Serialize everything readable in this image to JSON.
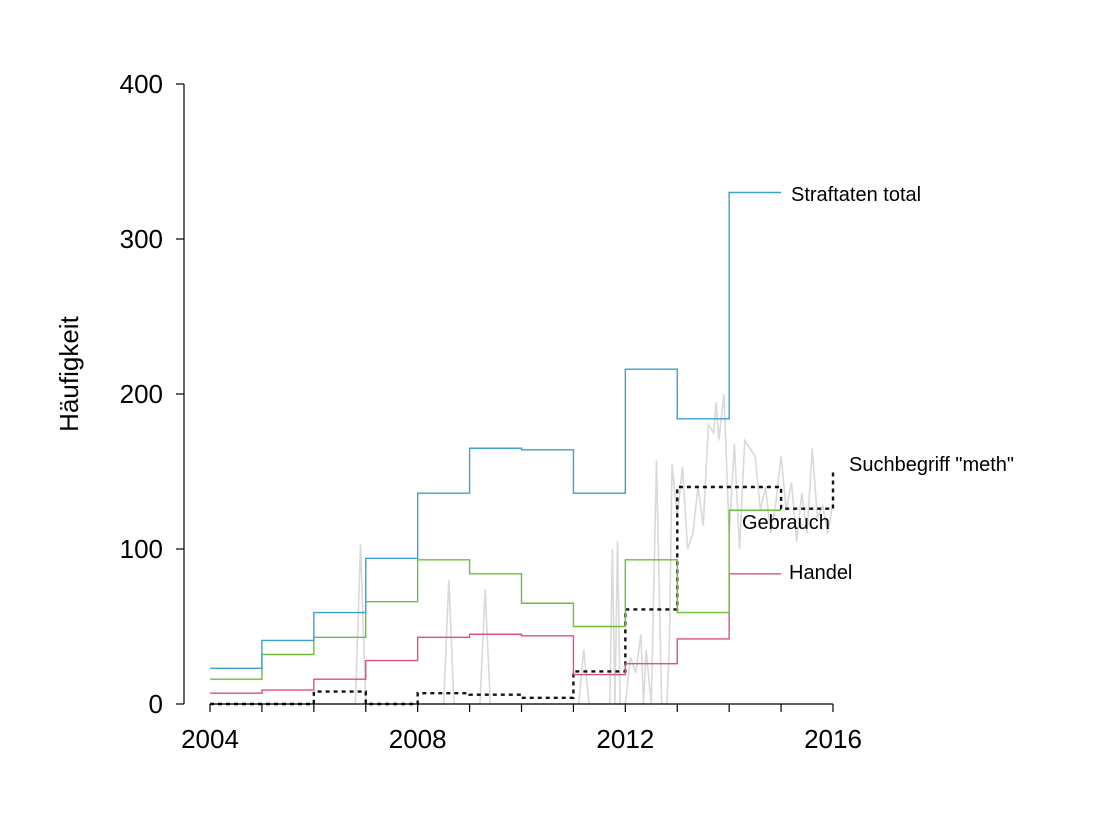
{
  "chart_data": {
    "type": "line",
    "title": "",
    "xlabel": "",
    "ylabel": "Häufigkeit",
    "xlim": [
      2004,
      2016
    ],
    "ylim": [
      0,
      400
    ],
    "x_ticks": [
      "2004",
      "2008",
      "2012",
      "2016"
    ],
    "y_ticks": [
      "0",
      "100",
      "200",
      "300",
      "400"
    ],
    "grid": false,
    "legend": "direct labels at right end of lines",
    "colors": {
      "straftaten": "#3aa1cf",
      "gebrauch": "#6cbf3a",
      "handel": "#db4f8a",
      "meth": "#111111",
      "trend": "#d9d9d9"
    },
    "series": [
      {
        "name": "Straftaten total",
        "key": "straftaten",
        "style": "step",
        "x": [
          2004,
          2005,
          2006,
          2007,
          2008,
          2009,
          2010,
          2011,
          2012,
          2013,
          2014,
          2015
        ],
        "values": [
          23,
          41,
          59,
          94,
          136,
          165,
          164,
          136,
          216,
          184,
          330,
          330
        ]
      },
      {
        "name": "Gebrauch",
        "key": "gebrauch",
        "style": "step",
        "x": [
          2004,
          2005,
          2006,
          2007,
          2008,
          2009,
          2010,
          2011,
          2012,
          2013,
          2014,
          2015
        ],
        "values": [
          16,
          32,
          43,
          66,
          93,
          84,
          65,
          50,
          93,
          59,
          125,
          125
        ]
      },
      {
        "name": "Handel",
        "key": "handel",
        "style": "step",
        "x": [
          2004,
          2005,
          2006,
          2007,
          2008,
          2009,
          2010,
          2011,
          2012,
          2013,
          2014,
          2015
        ],
        "values": [
          7,
          9,
          16,
          28,
          43,
          45,
          44,
          19,
          26,
          42,
          84,
          84
        ]
      },
      {
        "name": "Suchbegriff \"meth\"",
        "key": "meth",
        "style": "step-dashed",
        "x": [
          2004,
          2006,
          2007,
          2008,
          2009,
          2010,
          2011,
          2012,
          2013,
          2014,
          2015,
          2016
        ],
        "values": [
          0,
          8,
          0,
          7,
          6,
          4,
          21,
          61,
          140,
          140,
          126,
          150
        ]
      },
      {
        "key": "trend",
        "style": "line",
        "x": [
          2004.0,
          2005.0,
          2006.0,
          2006.4,
          2006.8,
          2006.9,
          2007.0,
          2008.0,
          2008.5,
          2008.6,
          2008.7,
          2009.0,
          2009.2,
          2009.3,
          2009.4,
          2010.0,
          2010.5,
          2011.0,
          2011.1,
          2011.2,
          2011.3,
          2011.5,
          2011.7,
          2011.75,
          2011.8,
          2011.85,
          2011.9,
          2012.0,
          2012.1,
          2012.2,
          2012.3,
          2012.35,
          2012.4,
          2012.5,
          2012.6,
          2012.7,
          2012.8,
          2012.85,
          2012.9,
          2013.0,
          2013.1,
          2013.2,
          2013.3,
          2013.4,
          2013.5,
          2013.6,
          2013.7,
          2013.75,
          2013.8,
          2013.9,
          2014.0,
          2014.1,
          2014.2,
          2014.3,
          2014.4,
          2014.5,
          2014.6,
          2014.7,
          2014.8,
          2014.9,
          2015.0,
          2015.1,
          2015.2,
          2015.3,
          2015.4,
          2015.5,
          2015.6,
          2015.7,
          2015.8,
          2015.9,
          2016.0
        ],
        "values": [
          0,
          0,
          0,
          0,
          0,
          103,
          0,
          0,
          0,
          80,
          0,
          0,
          0,
          74,
          0,
          0,
          0,
          0,
          0,
          35,
          0,
          0,
          0,
          100,
          0,
          105,
          0,
          0,
          30,
          20,
          45,
          0,
          35,
          0,
          157,
          0,
          0,
          40,
          155,
          120,
          153,
          100,
          110,
          140,
          115,
          180,
          175,
          195,
          170,
          200,
          110,
          168,
          100,
          170,
          165,
          160,
          125,
          140,
          110,
          130,
          160,
          125,
          143,
          105,
          136,
          110,
          165,
          120,
          128,
          110,
          130
        ]
      }
    ]
  }
}
